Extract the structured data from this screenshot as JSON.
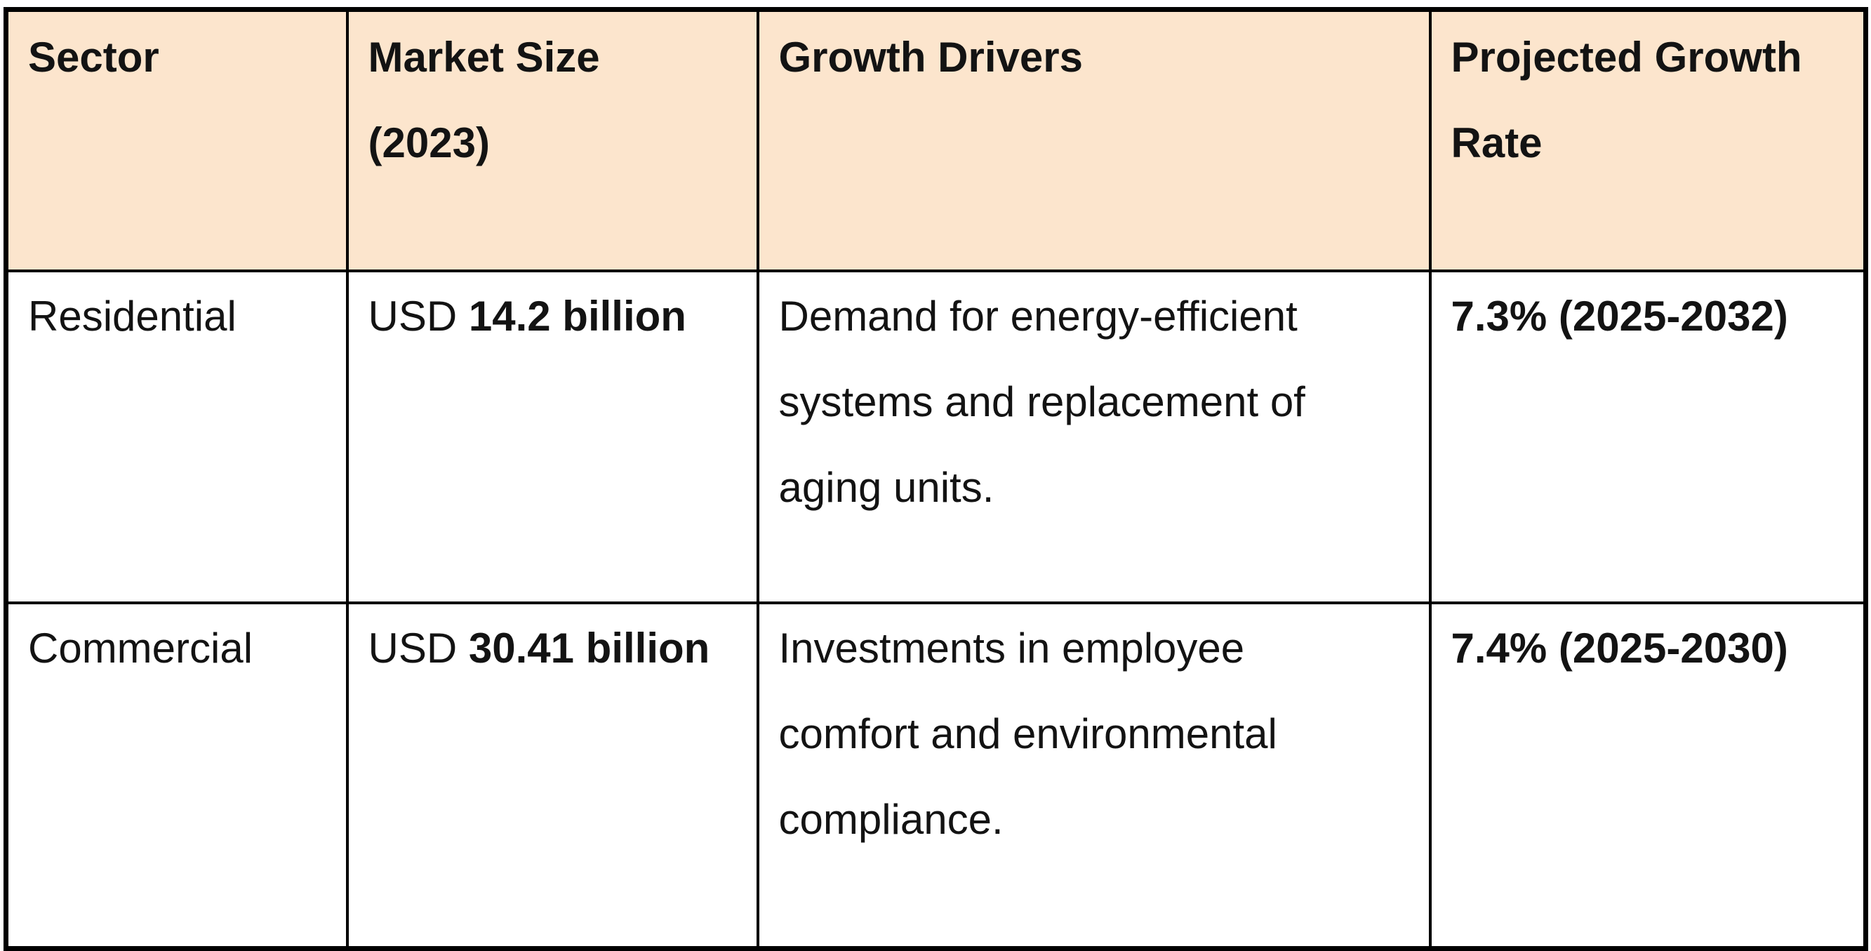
{
  "table": {
    "colors": {
      "header_bg": "#FCE5CD",
      "border": "#000000",
      "text": "#131313",
      "row_bg": "#FFFFFF"
    },
    "columns": [
      {
        "label": "Sector"
      },
      {
        "label": "Market Size\n(2023)"
      },
      {
        "label": "Growth Drivers"
      },
      {
        "label": "Projected Growth\nRate"
      }
    ],
    "rows": [
      {
        "sector": "Residential",
        "market_size_prefix": "USD ",
        "market_size_value": "14.2 billion",
        "growth_drivers": "Demand for energy-efficient\nsystems and replacement of\naging units.",
        "projected_growth_rate": "7.3% (2025-2032)"
      },
      {
        "sector": "Commercial",
        "market_size_prefix": "USD ",
        "market_size_value": "30.41 billion",
        "growth_drivers": "Investments in employee\ncomfort and environmental\ncompliance.",
        "projected_growth_rate": "7.4% (2025-2030)"
      }
    ]
  }
}
